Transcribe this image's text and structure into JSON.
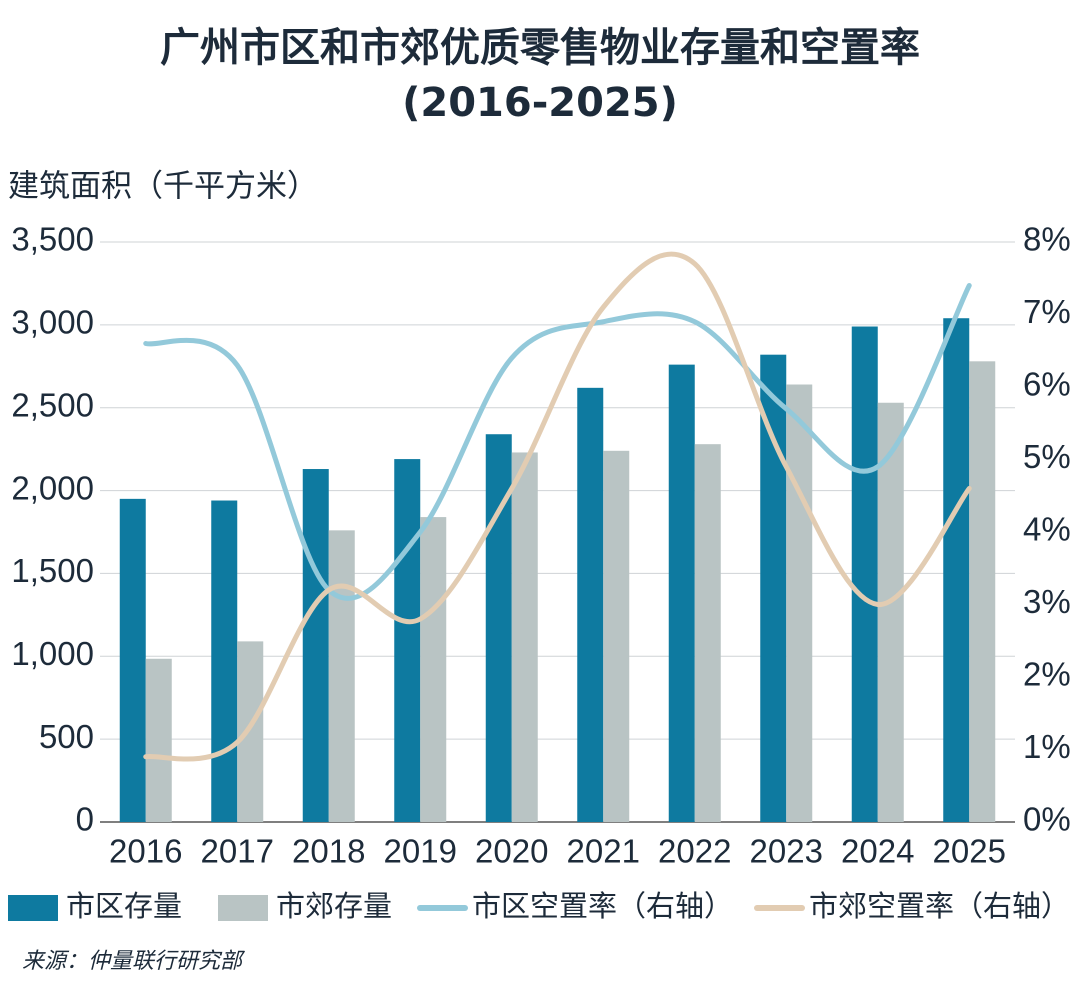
{
  "chart_data": {
    "type": "bar_line",
    "title": [
      "广州市区和市郊优质零售物业存量和空置率",
      "(2016-2025)"
    ],
    "y_label": "建筑面积（千平方米）",
    "source": "来源：仲量联行研究部",
    "categories": [
      "2016",
      "2017",
      "2018",
      "2019",
      "2020",
      "2021",
      "2022",
      "2023",
      "2024",
      "2025"
    ],
    "series": [
      {
        "name": "市区存量",
        "type": "bar",
        "color": "#0e7aa0",
        "values": [
          1950,
          1940,
          2130,
          2190,
          2340,
          2620,
          2760,
          2820,
          2990,
          3040
        ]
      },
      {
        "name": "市郊存量",
        "type": "bar",
        "color": "#b9c4c4",
        "values": [
          985,
          1090,
          1760,
          1840,
          2230,
          2240,
          2280,
          2640,
          2530,
          2780
        ]
      },
      {
        "name": "市区空置率（右轴）",
        "type": "line",
        "axis": "y2",
        "color": "#93c9da",
        "values": [
          6.6,
          6.3,
          3.2,
          4.0,
          6.4,
          6.9,
          6.9,
          5.7,
          4.9,
          7.4
        ]
      },
      {
        "name": "市郊空置率（右轴）",
        "type": "line",
        "axis": "y2",
        "color": "#e2ccb2",
        "values": [
          0.9,
          1.1,
          3.2,
          2.8,
          4.6,
          7.1,
          7.7,
          4.9,
          3.0,
          4.6
        ]
      }
    ],
    "ylim": [
      0,
      3500
    ],
    "yticks": [
      0,
      500,
      {
        "value": 1000,
        "label": "1,000"
      },
      {
        "value": 1500,
        "label": "1,500"
      },
      {
        "value": 2000,
        "label": "2,000"
      },
      {
        "value": 2500,
        "label": "2,500"
      },
      {
        "value": 3000,
        "label": "3,000"
      },
      {
        "value": 3500,
        "label": "3,500"
      }
    ],
    "y2lim": [
      0,
      8
    ],
    "y2ticks": [
      {
        "value": 0,
        "label": "0%"
      },
      {
        "value": 1,
        "label": "1%"
      },
      {
        "value": 2,
        "label": "2%"
      },
      {
        "value": 3,
        "label": "3%"
      },
      {
        "value": 4,
        "label": "4%"
      },
      {
        "value": 5,
        "label": "5%"
      },
      {
        "value": 6,
        "label": "6%"
      },
      {
        "value": 7,
        "label": "7%"
      },
      {
        "value": 8,
        "label": "8%"
      }
    ],
    "grid": true
  }
}
